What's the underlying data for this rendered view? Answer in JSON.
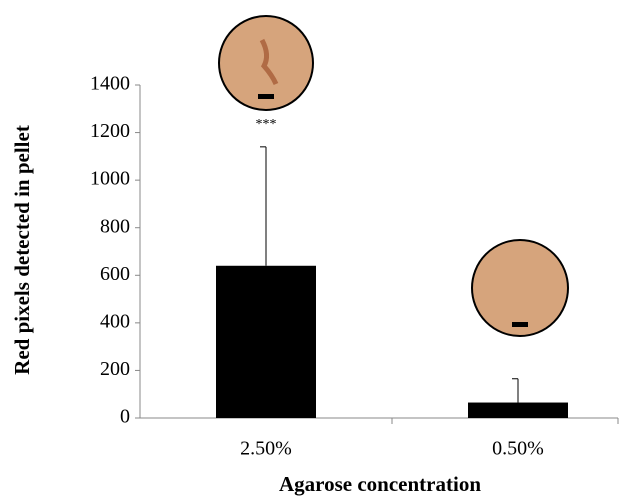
{
  "chart_data": {
    "type": "bar",
    "categories": [
      "2.50%",
      "0.50%"
    ],
    "values": [
      640,
      65
    ],
    "errors": [
      500,
      100
    ],
    "color": "#000000",
    "x_label": "Agarose concentration",
    "y_label": "Red pixels detected in pellet",
    "annotation": "***",
    "ylim": [
      0,
      1400
    ],
    "yticks": [
      0,
      200,
      400,
      600,
      800,
      1000,
      1200,
      1400
    ],
    "grid": false
  }
}
